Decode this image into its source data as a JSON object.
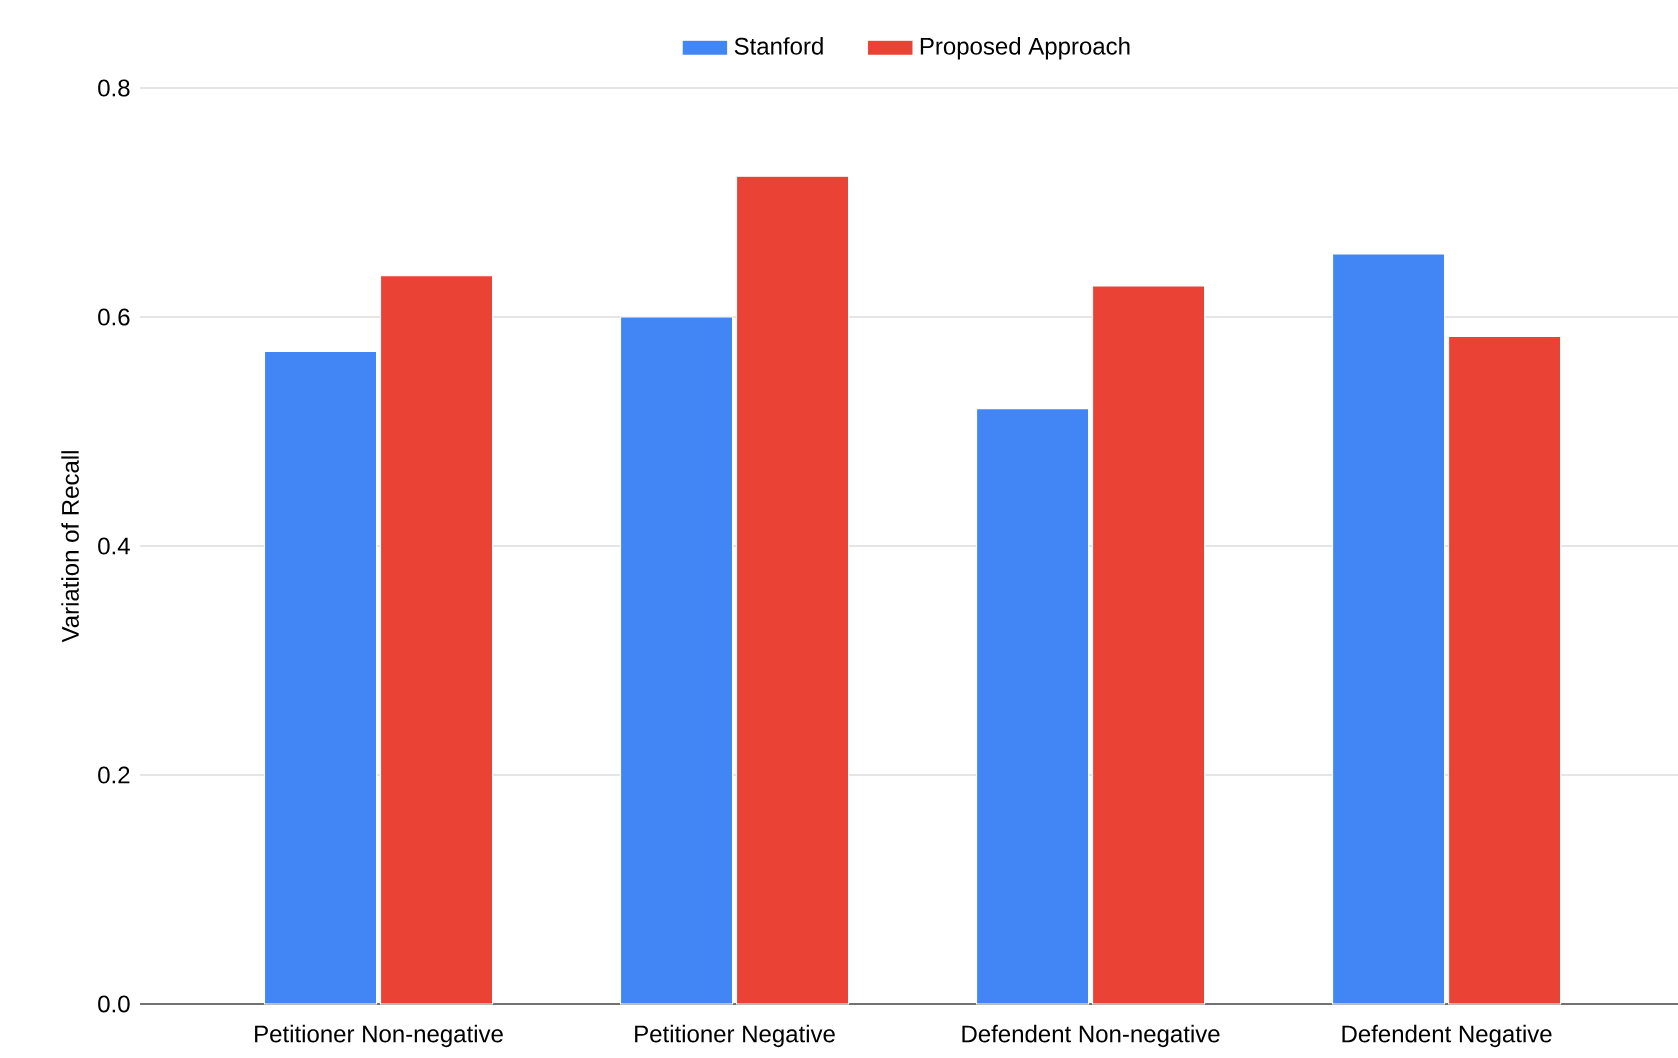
{
  "chart_data": {
    "type": "bar",
    "ylabel": "Variation of Recall",
    "categories": [
      "Petitioner Non-negative",
      "Petitioner Negative",
      "Defendent Non-negative",
      "Defendent Negative"
    ],
    "series": [
      {
        "name": "Stanford",
        "color": "#4285f4",
        "values": [
          0.57,
          0.6,
          0.52,
          0.655
        ]
      },
      {
        "name": "Proposed Approach",
        "color": "#ea4335",
        "values": [
          0.636,
          0.723,
          0.627,
          0.583
        ]
      }
    ],
    "ylim": [
      0,
      0.8
    ],
    "yticks": [
      {
        "value": 0,
        "label": "0.0"
      },
      0.2,
      0.4,
      0.6,
      0.8
    ],
    "grid": "y",
    "legend": "top"
  }
}
